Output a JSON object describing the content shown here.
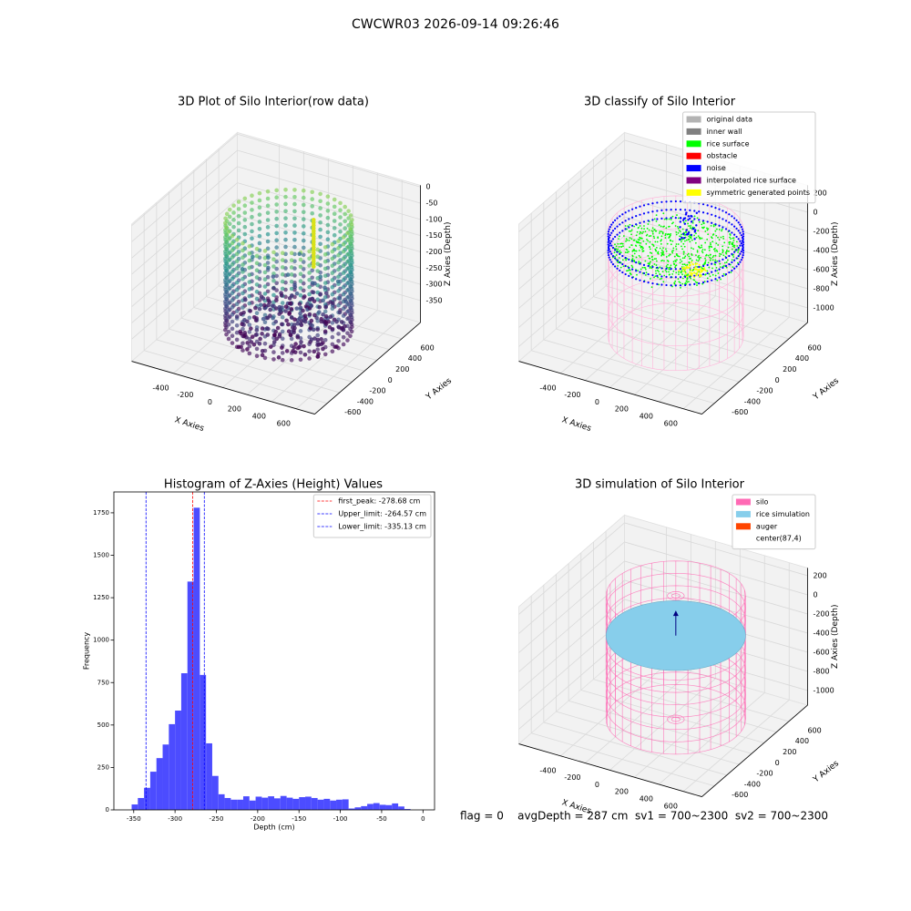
{
  "title": "CWCWR03 2026-09-14 09:26:46",
  "footer": "flag = 0    avgDepth = 287 cm  sv1 = 700~2300  sv2 = 700~2300",
  "chart_data": [
    {
      "type": "scatter3d",
      "title": "3D Plot of Silo Interior(row data)",
      "xlabel": "X Axies",
      "ylabel": "Y Axies",
      "zlabel": "Z Axies (Depth)",
      "xlim": [
        -740,
        750
      ],
      "ylim": [
        -800,
        900
      ],
      "zlim": [
        -418,
        5
      ],
      "xticks": [
        -400,
        -200,
        0,
        200,
        400,
        600
      ],
      "yticks": [
        -600,
        -400,
        -200,
        0,
        200,
        400,
        600
      ],
      "zticks": [
        0,
        -50,
        -100,
        -150,
        -200,
        -250,
        -300,
        -350
      ]
    },
    {
      "type": "scatter3d",
      "title": "3D classify of Silo Interior",
      "xlabel": "X Axies",
      "ylabel": "Y Axies",
      "zlabel": "Z Axies (Depth)",
      "xlim": [
        -740,
        750
      ],
      "ylim": [
        -800,
        900
      ],
      "zlim": [
        -1154,
        281
      ],
      "xticks": [
        -400,
        -200,
        0,
        200,
        400,
        600
      ],
      "yticks": [
        -600,
        -400,
        -200,
        0,
        200,
        400,
        600
      ],
      "zticks": [
        200,
        0,
        -200,
        -400,
        -600,
        -800,
        -1000
      ],
      "legend": "upper right",
      "series": [
        {
          "name": "original data",
          "color": "#b3b3b3"
        },
        {
          "name": "inner wall",
          "color": "#808080"
        },
        {
          "name": "rice surface",
          "color": "#00ff00"
        },
        {
          "name": "obstacle",
          "color": "#ff0000"
        },
        {
          "name": "noise",
          "color": "#0000ff"
        },
        {
          "name": "interpolated rice surface",
          "color": "#800080"
        },
        {
          "name": "symmetric generated points",
          "color": "#ffff00"
        }
      ]
    },
    {
      "type": "histogram",
      "title": "Histogram of Z-Axies (Height) Values",
      "xlabel": "Depth (cm)",
      "ylabel": "Frequency",
      "xlim": [
        -374,
        14
      ],
      "ylim": [
        0,
        1873
      ],
      "xticks": [
        -350,
        -300,
        -250,
        -200,
        -150,
        -100,
        -50,
        0
      ],
      "yticks": [
        0,
        250,
        500,
        750,
        1000,
        1250,
        1500,
        1750
      ],
      "color": "#4c4cff",
      "bins": [
        -352.5,
        -345,
        -337.5,
        -330,
        -322.5,
        -315,
        -307.5,
        -300,
        -292.5,
        -285,
        -277.5,
        -270,
        -262.5,
        -255,
        -247.5,
        -240,
        -232.5,
        -225,
        -217.5,
        -210,
        -202.5,
        -195,
        -187.5,
        -180,
        -172.5,
        -165,
        -157.5,
        -150,
        -142.5,
        -135,
        -127.5,
        -120,
        -112.5,
        -105,
        -97.5,
        -90,
        -82.5,
        -75,
        -67.5,
        -60,
        -52.5,
        -45,
        -37.5,
        -30,
        -22.5,
        -15
      ],
      "counts": [
        32,
        70,
        130,
        225,
        305,
        385,
        505,
        585,
        805,
        1345,
        1780,
        795,
        392,
        200,
        92,
        70,
        60,
        60,
        80,
        55,
        78,
        72,
        80,
        68,
        82,
        72,
        65,
        75,
        78,
        70,
        60,
        65,
        55,
        60,
        62,
        8,
        15,
        22,
        35,
        40,
        30,
        28,
        38,
        20,
        5
      ],
      "legend": "upper right",
      "vlines": [
        {
          "name": "first_peak: -278.68 cm",
          "value": -278.68,
          "color": "#ff0000"
        },
        {
          "name": "Upper_limit: -264.57 cm",
          "value": -264.57,
          "color": "#0000ff"
        },
        {
          "name": "Lower_limit: -335.13 cm",
          "value": -335.13,
          "color": "#0000ff"
        }
      ]
    },
    {
      "type": "surface3d",
      "title": "3D simulation of Silo Interior",
      "xlabel": "X Axies",
      "ylabel": "Y Axies",
      "zlabel": "Z Axies (Depth)",
      "xlim": [
        -740,
        750
      ],
      "ylim": [
        -800,
        900
      ],
      "zlim": [
        -1154,
        281
      ],
      "xticks": [
        -400,
        -200,
        0,
        200,
        400,
        600
      ],
      "yticks": [
        -600,
        -400,
        -200,
        0,
        200,
        400,
        600
      ],
      "zticks": [
        200,
        0,
        -200,
        -400,
        -600,
        -800,
        -1000
      ],
      "legend": "upper right",
      "series": [
        {
          "name": "silo",
          "color": "#ff69b4"
        },
        {
          "name": "rice simulation",
          "color": "#87ceeb"
        },
        {
          "name": "auger",
          "color": "#ff4500"
        },
        {
          "name": "center(87,4)",
          "color": "#ffffff"
        }
      ]
    }
  ]
}
